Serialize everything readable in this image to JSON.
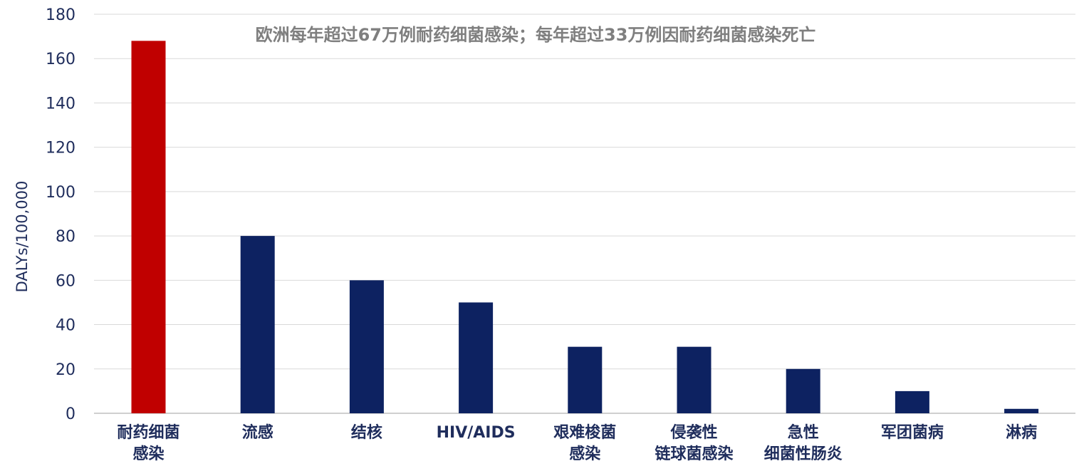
{
  "chart_data": {
    "type": "bar",
    "title": "欧洲每年超过67万例耐药细菌感染；每年超过33万例因耐药细菌感染死亡",
    "xlabel": "",
    "ylabel": "DALYs/100,000",
    "ylim": [
      0,
      180
    ],
    "yticks": [
      0,
      20,
      40,
      60,
      80,
      100,
      120,
      140,
      160,
      180
    ],
    "grid": true,
    "categories": [
      [
        "耐药细菌",
        "感染"
      ],
      [
        "流感"
      ],
      [
        "结核"
      ],
      [
        "HIV/AIDS"
      ],
      [
        "艰难梭菌",
        "感染"
      ],
      [
        "侵袭性",
        "链球菌感染"
      ],
      [
        "急性",
        "细菌性肠炎"
      ],
      [
        "军团菌病"
      ],
      [
        "淋病"
      ]
    ],
    "values": [
      168,
      80,
      60,
      50,
      30,
      30,
      20,
      10,
      2
    ],
    "colors": [
      "#c00000",
      "#0d2261",
      "#0d2261",
      "#0d2261",
      "#0d2261",
      "#0d2261",
      "#0d2261",
      "#0d2261",
      "#0d2261"
    ]
  }
}
